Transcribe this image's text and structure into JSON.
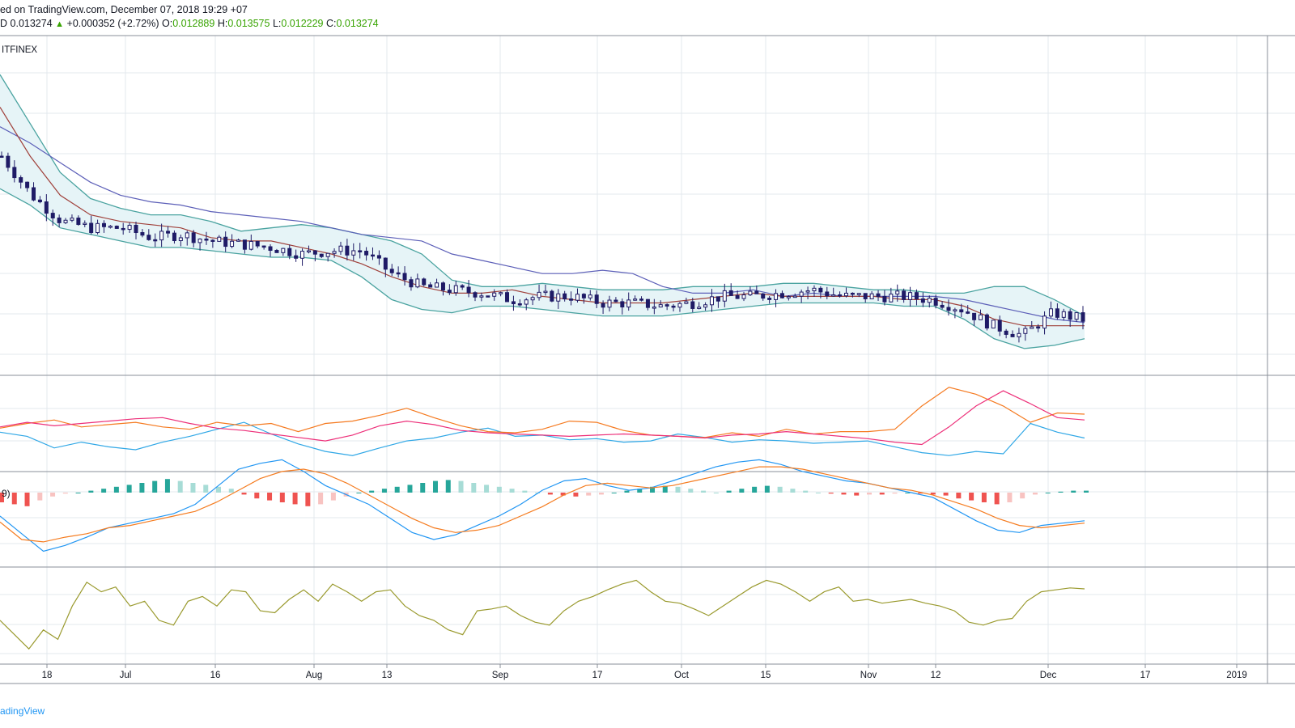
{
  "header": {
    "line1": "ed on TradingView.com, December 07, 2018 19:29 +07",
    "ohlc_prefix": "D",
    "last": "0.013274",
    "change_arrow": "▲",
    "change": "+0.000352 (+2.72%)",
    "o_label": "O:",
    "o": "0.012889",
    "h_label": "H:",
    "h": "0.013575",
    "l_label": "L:",
    "l": "0.012229",
    "c_label": "C:",
    "c": "0.013274"
  },
  "exchange_label": "ITFINEX",
  "macd_label": "9)",
  "footer_text": "adingView",
  "colors": {
    "candle": "#1f1b66",
    "bb_fill": "#e6f4f7",
    "bb_band": "#4aa3a0",
    "ma_long": "#5c5fb8",
    "ma_short": "#a0413b",
    "rsi_blue": "#2fa7e6",
    "rsi_orange": "#f57a20",
    "rsi_pink": "#ed2f79",
    "macd_pos": "#26a69a",
    "macd_pos_light": "#a7dcd6",
    "macd_neg": "#ef5350",
    "macd_neg_light": "#f8c3c1",
    "macd_line": "#2196f3",
    "signal_line": "#f57c20",
    "osc_line": "#9a9a2e",
    "grid": "#e3e9ee",
    "up_text": "#37a300"
  },
  "chart_data": {
    "type": "line",
    "x_ticks": [
      "18",
      "Jul",
      "16",
      "Aug",
      "13",
      "Sep",
      "17",
      "Oct",
      "15",
      "Nov",
      "12",
      "Dec",
      "17",
      "2019"
    ],
    "panels": [
      {
        "name": "price",
        "series": [
          {
            "values": [
              0.0189,
              0.0184,
              0.0178,
              0.0172,
              0.0168,
              0.0166,
              0.0165,
              0.0163,
              0.0162,
              0.0161,
              0.016,
              0.0158,
              0.0156,
              0.0155,
              0.0154,
              0.015,
              0.0148,
              0.0146,
              0.0144,
              0.0144,
              0.0145,
              0.0144,
              0.014,
              0.0138,
              0.0138,
              0.0139,
              0.0137,
              0.0138,
              0.0137,
              0.0137,
              0.0137,
              0.0137,
              0.0136,
              0.0134,
              0.0132,
              0.013,
              0.0129
            ]
          },
          {
            "values": [
              0.0195,
              0.018,
              0.0168,
              0.0162,
              0.016,
              0.0159,
              0.0158,
              0.0155,
              0.0154,
              0.0154,
              0.0152,
              0.015,
              0.0147,
              0.0143,
              0.014,
              0.0138,
              0.0138,
              0.0139,
              0.0137,
              0.0136,
              0.0135,
              0.0135,
              0.0135,
              0.0136,
              0.0137,
              0.0138,
              0.0137,
              0.0137,
              0.0137,
              0.0137,
              0.0136,
              0.0136,
              0.0134,
              0.013,
              0.0128,
              0.0128,
              0.0128
            ]
          },
          {
            "values": [
              0.0205,
              0.019,
              0.0175,
              0.0167,
              0.0164,
              0.0162,
              0.0162,
              0.016,
              0.0157,
              0.0158,
              0.0159,
              0.0158,
              0.0156,
              0.0154,
              0.015,
              0.0142,
              0.014,
              0.014,
              0.0141,
              0.014,
              0.0139,
              0.0139,
              0.0139,
              0.014,
              0.014,
              0.014,
              0.0141,
              0.0141,
              0.014,
              0.0139,
              0.0139,
              0.0138,
              0.0138,
              0.014,
              0.014,
              0.0136,
              0.0131
            ]
          },
          {
            "values": [
              0.017,
              0.0165,
              0.0158,
              0.0156,
              0.0154,
              0.0152,
              0.0152,
              0.0151,
              0.015,
              0.0149,
              0.0149,
              0.0148,
              0.0143,
              0.0136,
              0.0133,
              0.0132,
              0.0134,
              0.0134,
              0.0133,
              0.0132,
              0.0131,
              0.0131,
              0.0131,
              0.0132,
              0.0133,
              0.0134,
              0.0135,
              0.0135,
              0.0135,
              0.0135,
              0.0134,
              0.0134,
              0.013,
              0.0124,
              0.0121,
              0.0122,
              0.0124
            ]
          },
          {
            "values": [
              0.018,
              0.0168,
              0.016,
              0.0158,
              0.0158,
              0.0155,
              0.0156,
              0.0154,
              0.0153,
              0.0152,
              0.015,
              0.0151,
              0.0151,
              0.0144,
              0.014,
              0.0139,
              0.0138,
              0.0136,
              0.0137,
              0.0137,
              0.0135,
              0.0135,
              0.0134,
              0.0135,
              0.0137,
              0.0137,
              0.0138,
              0.0139,
              0.0137,
              0.0137,
              0.0137,
              0.0136,
              0.0133,
              0.0128,
              0.0125,
              0.0132,
              0.013
            ]
          }
        ]
      },
      {
        "name": "stoch_rsi",
        "series": [
          {
            "values": [
              55,
              48,
              28,
              38,
              30,
              25,
              38,
              48,
              60,
              72,
              52,
              35,
              22,
              15,
              28,
              40,
              45,
              55,
              62,
              48,
              50,
              42,
              44,
              38,
              40,
              52,
              46,
              38,
              42,
              40,
              36,
              38,
              40,
              30,
              20,
              15,
              22,
              18,
              70,
              55,
              45
            ]
          },
          {
            "values": [
              62,
              70,
              76,
              64,
              68,
              72,
              64,
              60,
              72,
              66,
              70,
              56,
              70,
              74,
              84,
              96,
              80,
              66,
              56,
              54,
              60,
              74,
              72,
              58,
              50,
              48,
              46,
              54,
              48,
              60,
              52,
              56,
              56,
              60,
              100,
              132,
              120,
              100,
              72,
              88,
              86
            ]
          },
          {
            "values": [
              64,
              72,
              66,
              70,
              74,
              78,
              80,
              70,
              62,
              58,
              52,
              46,
              40,
              50,
              66,
              74,
              68,
              58,
              54,
              52,
              50,
              48,
              50,
              52,
              50,
              48,
              45,
              50,
              52,
              56,
              52,
              48,
              44,
              38,
              34,
              64,
              100,
              126,
              104,
              80,
              76
            ]
          }
        ]
      },
      {
        "name": "macd",
        "histogram": [
          -10,
          -12,
          -14,
          -8,
          -4,
          -1,
          0,
          2,
          4,
          6,
          8,
          10,
          12,
          14,
          12,
          10,
          8,
          6,
          4,
          -2,
          -6,
          -8,
          -10,
          -12,
          -14,
          -12,
          -8,
          -4,
          0,
          2,
          4,
          6,
          8,
          10,
          12,
          13,
          12,
          10,
          8,
          6,
          4,
          2,
          0,
          -2,
          -3,
          -4,
          -3,
          -2,
          0,
          2,
          4,
          6,
          7,
          6,
          4,
          2,
          0,
          2,
          4,
          6,
          7,
          6,
          4,
          2,
          0,
          -1,
          -2,
          -3,
          -2,
          -2,
          -1,
          0,
          -1,
          -2,
          -3,
          -6,
          -8,
          -10,
          -12,
          -10,
          -6,
          -2,
          0,
          1,
          2,
          2
        ],
        "series": [
          {
            "values": [
              -20,
              -35,
              -50,
              -45,
              -38,
              -30,
              -26,
              -22,
              -18,
              -10,
              5,
              20,
              25,
              28,
              18,
              6,
              -2,
              -10,
              -22,
              -34,
              -40,
              -36,
              -28,
              -20,
              -10,
              2,
              10,
              12,
              6,
              2,
              4,
              10,
              16,
              22,
              26,
              28,
              24,
              18,
              14,
              10,
              8,
              4,
              0,
              -4,
              -14,
              -24,
              -32,
              -34,
              -28,
              -26,
              -24
            ]
          },
          {
            "values": [
              -25,
              -40,
              -42,
              -38,
              -35,
              -30,
              -28,
              -24,
              -20,
              -16,
              -8,
              2,
              12,
              18,
              20,
              16,
              8,
              -2,
              -12,
              -22,
              -30,
              -34,
              -32,
              -28,
              -20,
              -12,
              -2,
              6,
              8,
              6,
              4,
              6,
              10,
              14,
              18,
              22,
              22,
              20,
              16,
              12,
              8,
              4,
              2,
              -2,
              -8,
              -14,
              -22,
              -28,
              -30,
              -28,
              -26
            ]
          }
        ]
      },
      {
        "name": "oscillator",
        "series": [
          {
            "values": [
              40,
              25,
              10,
              30,
              20,
              55,
              80,
              70,
              75,
              55,
              60,
              40,
              35,
              60,
              65,
              55,
              72,
              70,
              50,
              48,
              62,
              72,
              60,
              78,
              70,
              60,
              70,
              72,
              55,
              45,
              40,
              30,
              25,
              50,
              52,
              55,
              45,
              38,
              35,
              50,
              60,
              65,
              72,
              78,
              82,
              70,
              60,
              58,
              52,
              45,
              55,
              65,
              75,
              82,
              78,
              70,
              60,
              70,
              75,
              60,
              62,
              58,
              60,
              62,
              58,
              55,
              50,
              38,
              35,
              40,
              42,
              60,
              70,
              72,
              74,
              73
            ]
          }
        ]
      }
    ]
  }
}
